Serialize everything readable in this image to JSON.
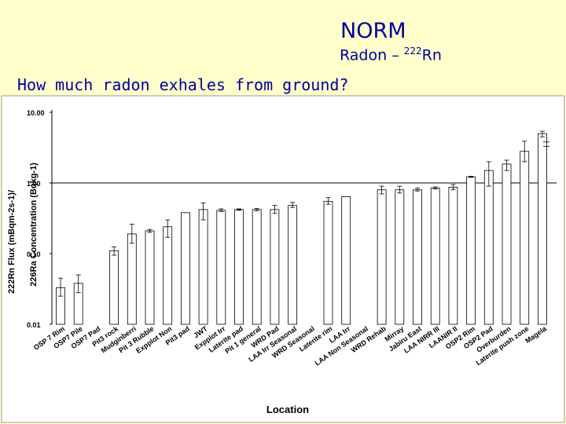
{
  "slide": {
    "title": "NORM",
    "subtitle_prefix": "Radon – ",
    "subtitle_sup": "222",
    "subtitle_suffix": "Rn",
    "question": "How much radon exhales from ground?"
  },
  "chart_data": {
    "type": "bar",
    "ylabel": "222Rn Flux (mBqm-2s-1)/226Ra Concentration (Bqkg-1)",
    "xlabel": "Location",
    "yscale": "log",
    "ylim": [
      0.01,
      10
    ],
    "yticks": [
      "0.01",
      "0.10",
      "1.00",
      "10.00"
    ],
    "reference_line": 1.0,
    "categories": [
      "OSP 7 Rim",
      "OSP7 Pile",
      "OSP7 Pad",
      "Pit3 rock",
      "Mudginberri",
      "Pit 3 Rubble",
      "Expplot Non",
      "Pit3 pad",
      "JWT",
      "Expplot Irr",
      "Laterite pad",
      "Pit 1 general",
      "WRD Pad",
      "LAA Irr Seasonal",
      "WRD Seasonal",
      "Laterite rim",
      "LAA Irr",
      "LAA Non Seasonal",
      "WRD Rehab",
      "Mirray",
      "Jabiru East",
      "LAA NIRR III",
      "LAANIR II",
      "OSP2 Rim",
      "OSP2 Pad",
      "Overburden",
      "Laterite push zone",
      "Magela"
    ],
    "series": [
      {
        "values": [
          0.033,
          0.038,
          0,
          0.11,
          0.19,
          0.21,
          0.24,
          0.38,
          0.42,
          0.41,
          0.42,
          0.42,
          0.42,
          0.48,
          0,
          0.55,
          0.64,
          0,
          0.8,
          0.8,
          0.8,
          0.85,
          0.87,
          1.22,
          1.5,
          1.85,
          2.8,
          5.0
        ],
        "err_low": [
          0.025,
          0.028,
          0,
          0.095,
          0.14,
          0.2,
          0.17,
          0.38,
          0.3,
          0.395,
          0.41,
          0.405,
          0.37,
          0.45,
          0,
          0.5,
          0.64,
          0,
          0.7,
          0.72,
          0.77,
          0.82,
          0.8,
          1.2,
          0.9,
          1.5,
          2.0,
          4.5
        ],
        "err_high": [
          0.045,
          0.05,
          0,
          0.125,
          0.26,
          0.22,
          0.3,
          0.38,
          0.52,
          0.43,
          0.43,
          0.435,
          0.48,
          0.53,
          0,
          0.62,
          0.64,
          0,
          0.9,
          0.9,
          0.85,
          0.88,
          0.95,
          1.24,
          2.0,
          2.1,
          3.9,
          5.4
        ]
      }
    ],
    "side_marks": [
      3.8,
      3.3
    ]
  },
  "colors": {
    "background": "#ffffcc",
    "title": "#000099",
    "plot_bg": "#ffffff"
  }
}
